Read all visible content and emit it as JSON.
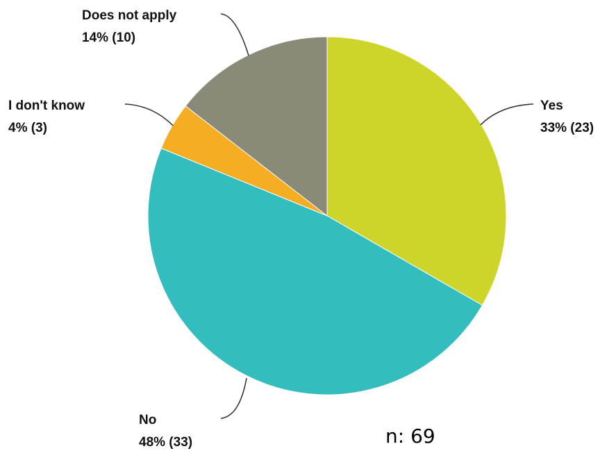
{
  "chart_data": {
    "type": "pie",
    "slices": [
      {
        "label": "Yes",
        "percent_label": "33% (23)",
        "count": 23,
        "color": "#cdd52a"
      },
      {
        "label": "No",
        "percent_label": "48% (33)",
        "count": 33,
        "color": "#33bdbf"
      },
      {
        "label": "I don't know",
        "percent_label": "4% (3)",
        "count": 3,
        "color": "#f5ad23"
      },
      {
        "label": "Does not apply",
        "percent_label": "14% (10)",
        "count": 10,
        "color": "#8a8a78"
      }
    ],
    "start": "12 o'clock",
    "direction": "clockwise",
    "legend": "none"
  },
  "footer": {
    "n_label": "n: 69"
  }
}
